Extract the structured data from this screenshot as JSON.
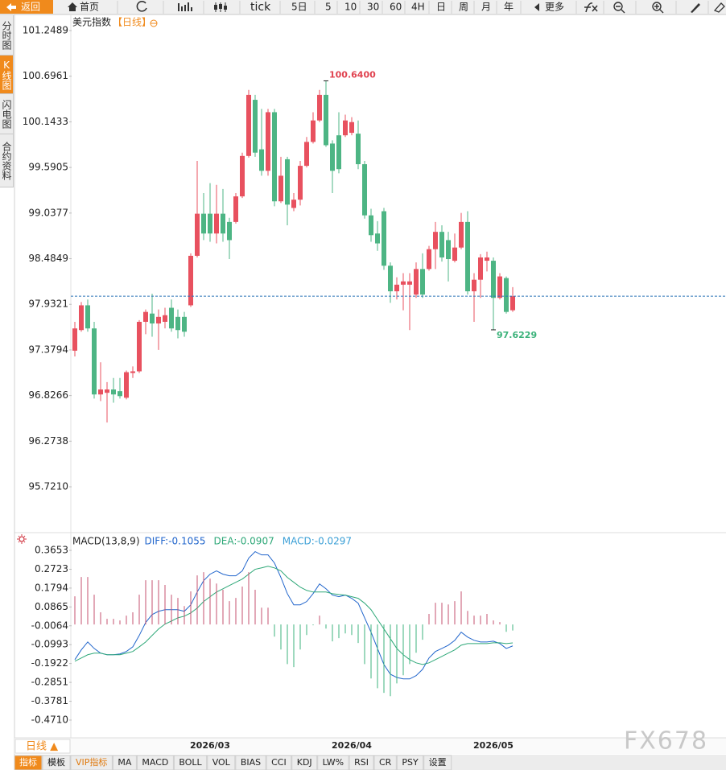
{
  "toolbar": [
    "返回",
    "首页",
    "tick",
    "5日",
    "5",
    "10",
    "30",
    "60",
    "4H",
    "日",
    "周",
    "月",
    "年",
    "更多"
  ],
  "sidebar": [
    "分时图",
    "K线图",
    "闪电图",
    "合约资料"
  ],
  "chart_data": [
    {
      "type": "candlestick",
      "title": "美元指数",
      "subtitle": "【日线】",
      "categories": [
        null,
        null,
        null,
        null,
        null,
        null,
        null,
        null,
        null,
        null,
        null,
        null,
        null,
        null,
        null,
        null,
        null,
        null,
        null,
        null,
        null,
        "2026/03",
        null,
        null,
        null,
        null,
        null,
        null,
        null,
        null,
        null,
        null,
        null,
        null,
        null,
        null,
        null,
        null,
        null,
        null,
        null,
        null,
        null,
        "2026/04",
        null,
        null,
        null,
        null,
        null,
        null,
        null,
        null,
        null,
        null,
        null,
        null,
        null,
        null,
        null,
        null,
        null,
        null,
        null,
        null,
        null,
        "2026/05",
        null,
        null,
        null
      ],
      "open": [
        97.37,
        97.62,
        97.92,
        97.64,
        96.84,
        96.86,
        96.9,
        96.88,
        96.8,
        97.1,
        97.12,
        97.72,
        97.82,
        97.7,
        97.72,
        97.89,
        97.78,
        97.78,
        97.92,
        98.52,
        99.03,
        99.03,
        98.79,
        99.03,
        98.93,
        98.93,
        99.24,
        99.73,
        100.41,
        99.81,
        99.55,
        100.26,
        99.18,
        99.69,
        99.1,
        99.2,
        99.61,
        99.9,
        100.16,
        100.47,
        99.88,
        99.98,
        99.98,
        100.01,
        100.0,
        99.63,
        99.01,
        98.79,
        99.06,
        98.4,
        98.09,
        98.17,
        98.17,
        98.05,
        98.36,
        98.36,
        98.6,
        98.81,
        98.71,
        98.46,
        98.62,
        98.93,
        98.09,
        98.23,
        98.46,
        98.46,
        98.01,
        98.25,
        97.86
      ],
      "high": [
        97.72,
        97.96,
        97.99,
        97.72,
        97.23,
        96.99,
        97.04,
        97.04,
        97.13,
        97.18,
        97.74,
        97.87,
        98.06,
        97.87,
        97.89,
        97.99,
        97.87,
        97.84,
        98.55,
        99.67,
        99.28,
        99.4,
        99.38,
        99.33,
        98.98,
        99.28,
        99.77,
        100.53,
        100.47,
        100.3,
        100.3,
        100.3,
        99.72,
        99.72,
        99.28,
        99.67,
        99.96,
        100.26,
        100.53,
        100.64,
        99.92,
        100.26,
        100.23,
        100.2,
        100.16,
        99.67,
        99.09,
        98.94,
        99.1,
        98.44,
        98.26,
        98.31,
        98.31,
        98.44,
        98.55,
        98.64,
        98.93,
        98.89,
        98.81,
        98.79,
        99.04,
        99.06,
        98.31,
        98.54,
        98.57,
        98.5,
        98.31,
        98.27,
        98.14
      ],
      "low": [
        97.3,
        97.6,
        97.6,
        96.79,
        96.76,
        96.5,
        96.74,
        96.79,
        96.78,
        97.04,
        97.1,
        97.57,
        97.54,
        97.38,
        97.64,
        97.6,
        97.52,
        97.54,
        97.9,
        98.5,
        98.71,
        98.69,
        98.67,
        98.69,
        98.48,
        98.91,
        99.22,
        99.71,
        99.72,
        99.49,
        99.49,
        99.12,
        99.16,
        98.89,
        99.06,
        99.13,
        99.59,
        99.88,
        100.14,
        99.84,
        99.28,
        99.52,
        99.96,
        99.98,
        99.57,
        98.97,
        98.69,
        98.58,
        98.35,
        97.95,
        97.99,
        97.86,
        97.62,
        98.01,
        98.01,
        98.34,
        98.36,
        98.45,
        98.21,
        98.44,
        98.6,
        98.05,
        97.72,
        98.01,
        98.33,
        97.6229,
        97.99,
        97.82,
        97.84
      ],
      "close": [
        97.64,
        97.92,
        97.64,
        96.84,
        96.9,
        96.9,
        96.84,
        96.82,
        97.11,
        97.12,
        97.72,
        97.84,
        97.7,
        97.78,
        97.8,
        97.64,
        97.62,
        97.6,
        98.52,
        99.03,
        98.79,
        98.79,
        99.03,
        98.79,
        98.71,
        99.24,
        99.73,
        100.47,
        99.77,
        99.55,
        100.26,
        99.18,
        99.49,
        99.14,
        99.2,
        99.61,
        99.9,
        100.16,
        100.47,
        99.86,
        99.55,
        99.57,
        100.16,
        100.14,
        99.63,
        99.01,
        98.77,
        98.67,
        98.4,
        98.09,
        98.17,
        98.21,
        98.21,
        98.36,
        98.05,
        98.6,
        98.81,
        98.5,
        98.48,
        98.62,
        98.93,
        98.09,
        98.23,
        98.5,
        98.5,
        98.01,
        98.27,
        97.84,
        98.03
      ],
      "up_color": "#e8515f",
      "down_color": "#4db584",
      "ylim": [
        95.185,
        101.444
      ],
      "yticks": [
        101.2489,
        100.6961,
        100.1433,
        99.5905,
        99.0377,
        98.4849,
        97.9321,
        97.3794,
        96.8266,
        96.2738,
        {
          "value": 95.721,
          "label": "95.7210"
        }
      ],
      "annotations": [
        {
          "text": "100.6400",
          "value": 100.64,
          "color": "#e0424f"
        },
        {
          "text": "97.6229",
          "value": 97.6229,
          "color": "#3bb27a"
        }
      ],
      "last_line_color": "#2b73b8"
    },
    {
      "type": "macd",
      "title": "MACD(13,8,9)",
      "series": [
        {
          "name": "DIFF:-0.1055",
          "color": "#2266cc",
          "values": [
            -0.173,
            -0.125,
            -0.086,
            -0.118,
            -0.141,
            -0.149,
            -0.149,
            -0.145,
            -0.133,
            -0.11,
            -0.054,
            0.01,
            0.049,
            0.065,
            0.073,
            0.073,
            0.073,
            0.065,
            0.097,
            0.16,
            0.216,
            0.248,
            0.264,
            0.248,
            0.24,
            0.24,
            0.264,
            0.327,
            0.359,
            0.343,
            0.343,
            0.303,
            0.232,
            0.152,
            0.097,
            0.097,
            0.113,
            0.152,
            0.2,
            0.176,
            0.145,
            0.137,
            0.145,
            0.129,
            0.105,
            0.033,
            -0.038,
            -0.118,
            -0.197,
            -0.245,
            -0.261,
            -0.268,
            -0.268,
            -0.252,
            -0.221,
            -0.165,
            -0.133,
            -0.118,
            -0.102,
            -0.078,
            -0.038,
            -0.062,
            -0.078,
            -0.086,
            -0.086,
            -0.082,
            -0.094,
            -0.118,
            -0.1055
          ]
        },
        {
          "name": "DEA:-0.0907",
          "color": "#2ea878",
          "values": [
            -0.181,
            -0.165,
            -0.149,
            -0.141,
            -0.141,
            -0.149,
            -0.149,
            -0.149,
            -0.141,
            -0.133,
            -0.11,
            -0.086,
            -0.054,
            -0.022,
            0.002,
            0.017,
            0.033,
            0.041,
            0.057,
            0.081,
            0.113,
            0.137,
            0.16,
            0.176,
            0.192,
            0.208,
            0.224,
            0.248,
            0.272,
            0.279,
            0.287,
            0.279,
            0.264,
            0.232,
            0.208,
            0.184,
            0.168,
            0.16,
            0.16,
            0.16,
            0.152,
            0.148,
            0.145,
            0.137,
            0.129,
            0.105,
            0.073,
            0.025,
            -0.022,
            -0.07,
            -0.118,
            -0.149,
            -0.173,
            -0.189,
            -0.197,
            -0.189,
            -0.173,
            -0.157,
            -0.141,
            -0.125,
            -0.102,
            -0.094,
            -0.094,
            -0.094,
            -0.094,
            -0.09,
            -0.09,
            -0.094,
            -0.0907
          ]
        },
        {
          "name": "MACD:-0.0297",
          "color": "#3a9fd6",
          "up_color": "#c4516f",
          "down_color": "#3cb37c",
          "values": [
            0.139,
            0.234,
            0.234,
            0.147,
            0.06,
            0.028,
            0.028,
            0.02,
            0.044,
            0.06,
            0.147,
            0.218,
            0.218,
            0.218,
            0.195,
            0.147,
            0.131,
            0.091,
            0.163,
            0.242,
            0.258,
            0.226,
            0.202,
            0.171,
            0.115,
            0.131,
            0.187,
            0.258,
            0.171,
            0.083,
            0.083,
            -0.06,
            -0.123,
            -0.195,
            -0.21,
            -0.123,
            -0.052,
            -0.004,
            0.044,
            -0.02,
            -0.083,
            -0.067,
            -0.044,
            -0.052,
            -0.091,
            -0.195,
            -0.266,
            -0.314,
            -0.337,
            -0.353,
            -0.29,
            -0.25,
            -0.195,
            -0.139,
            -0.075,
            0.052,
            0.107,
            0.107,
            0.099,
            0.115,
            0.163,
            0.067,
            0.044,
            0.044,
            0.052,
            0.02,
            0.012,
            -0.036,
            -0.0297
          ]
        }
      ],
      "ylim": [
        -0.5504,
        0.4526
      ],
      "yticks": [
        0.3653,
        0.2723,
        0.1794,
        0.0865,
        -0.0064,
        -0.0993,
        -0.1922,
        -0.2851,
        -0.3781,
        {
          "value": -0.471,
          "label": "-0.4710"
        }
      ]
    }
  ],
  "footer": {
    "period": "日线 ▲",
    "tabs": [
      "指标",
      "模板",
      "VIP指标",
      "MA",
      "MACD",
      "BOLL",
      "VOL",
      "BIAS",
      "CCI",
      "KDJ",
      "LW%",
      "RSI",
      "CR",
      "PSY",
      "设置"
    ]
  },
  "watermark": "FX678"
}
